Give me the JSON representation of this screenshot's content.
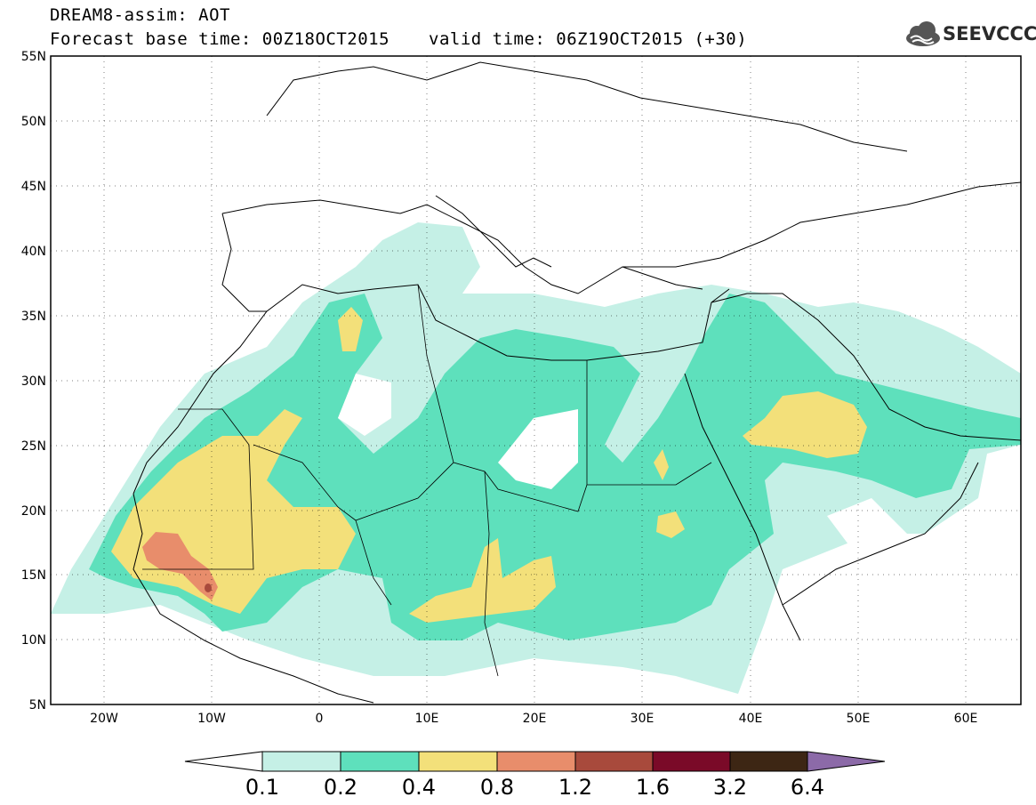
{
  "header": {
    "title": "DREAM8-assim: AOT",
    "base_time": "Forecast base time: 00Z18OCT2015",
    "valid_time": "valid time: 06Z19OCT2015 (+30)"
  },
  "logo": {
    "text": "SEEVCCC",
    "icon": "cloud-logo-icon"
  },
  "map": {
    "lon_range": [
      -25,
      65
    ],
    "lat_range": [
      5,
      55
    ],
    "x_ticks": [
      "20W",
      "10W",
      "0",
      "10E",
      "20E",
      "30E",
      "40E",
      "50E",
      "60E"
    ],
    "y_ticks": [
      "55N",
      "50N",
      "45N",
      "40N",
      "35N",
      "30N",
      "25N",
      "20N",
      "15N",
      "10N",
      "5N"
    ],
    "grid": "dotted"
  },
  "colorbar": {
    "labels": [
      "0.1",
      "0.2",
      "0.4",
      "0.8",
      "1.2",
      "1.6",
      "3.2",
      "6.4"
    ],
    "colors": [
      "#ffffff",
      "#c5f0e6",
      "#5ee0bc",
      "#f3e07a",
      "#e88d6b",
      "#a84a3c",
      "#7a0a28",
      "#3d2614",
      "#8c6aa8"
    ]
  }
}
